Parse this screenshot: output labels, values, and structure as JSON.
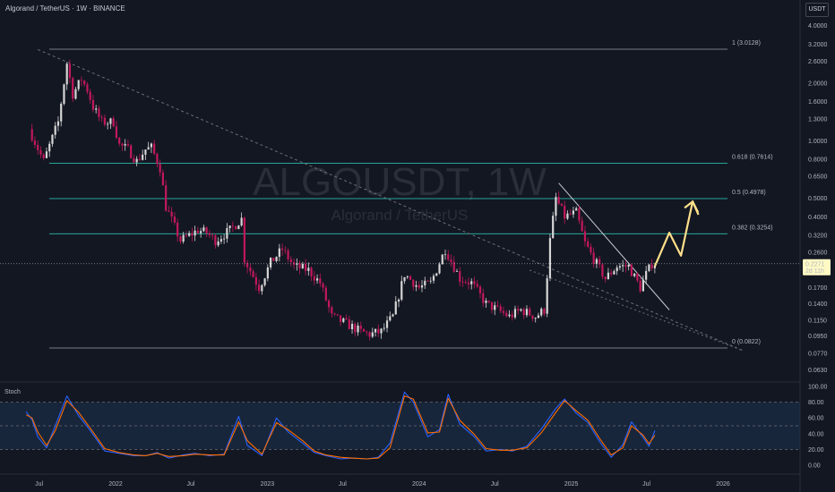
{
  "header": {
    "title": "Algorand / TetherUS · 1W · BINANCE",
    "currency_button": "USDT"
  },
  "watermark": {
    "symbol": "ALGOUSDT, 1W",
    "name": "Algorand / TetherUS"
  },
  "colors": {
    "background": "#131722",
    "up": "#d6d6d6",
    "down": "#c2185b",
    "fib_top": "#787b86",
    "fib_mid": "#26a69a",
    "fib_bottom": "#787b86",
    "arrow": "#ffe08a",
    "stoch_k": "#2962ff",
    "stoch_d": "#ff6d00"
  },
  "chart_data": [
    {
      "type": "candlestick",
      "scale": "log",
      "ylim": [
        0.055,
        4.3
      ],
      "x_ticks": [
        "Jul",
        "2022",
        "Jul",
        "2023",
        "Jul",
        "2024",
        "Jul",
        "2025",
        "Jul",
        "2026"
      ],
      "y_ticks": [
        4.0,
        3.2,
        2.6,
        2.0,
        1.6,
        1.3,
        1.0,
        0.8,
        0.65,
        0.5,
        0.4,
        0.32,
        0.26,
        0.21,
        0.17,
        0.14,
        0.115,
        0.095,
        0.077,
        0.063
      ],
      "y_tick_labels": [
        "4.0000",
        "3.2000",
        "2.6000",
        "2.0000",
        "1.6000",
        "1.3000",
        "1.0000",
        "0.8000",
        "0.6500",
        "0.5000",
        "0.4000",
        "0.3200",
        "0.2600",
        "0.2100",
        "0.1700",
        "0.1400",
        "0.1150",
        "0.0950",
        "0.0770",
        "0.0630"
      ],
      "current_price": {
        "value": 0.2271,
        "label": "0.2271",
        "countdown": "2d 11h"
      },
      "fib_levels": [
        {
          "ratio": 1,
          "price": 3.0128,
          "label": "1 (3.0128)"
        },
        {
          "ratio": 0.618,
          "price": 0.7614,
          "label": "0.618 (0.7614)"
        },
        {
          "ratio": 0.5,
          "price": 0.4978,
          "label": "0.5 (0.4978)"
        },
        {
          "ratio": 0.382,
          "price": 0.3254,
          "label": "0.382 (0.3254)"
        },
        {
          "ratio": 0,
          "price": 0.0822,
          "label": "0 (0.0822)"
        }
      ],
      "price_anchors": [
        [
          "2021-06-14",
          1.15
        ],
        [
          "2021-07-19",
          0.78
        ],
        [
          "2021-08-23",
          1.25
        ],
        [
          "2021-09-13",
          2.55
        ],
        [
          "2021-09-27",
          1.75
        ],
        [
          "2021-10-18",
          2.1
        ],
        [
          "2021-11-01",
          1.85
        ],
        [
          "2021-11-15",
          1.5
        ],
        [
          "2021-12-06",
          1.25
        ],
        [
          "2022-01-03",
          1.25
        ],
        [
          "2022-01-17",
          0.95
        ],
        [
          "2022-02-07",
          0.9
        ],
        [
          "2022-02-28",
          0.78
        ],
        [
          "2022-03-21",
          0.9
        ],
        [
          "2022-04-04",
          0.92
        ],
        [
          "2022-04-25",
          0.72
        ],
        [
          "2022-05-09",
          0.45
        ],
        [
          "2022-06-13",
          0.3
        ],
        [
          "2022-07-25",
          0.34
        ],
        [
          "2022-08-15",
          0.33
        ],
        [
          "2022-09-05",
          0.3
        ],
        [
          "2022-10-10",
          0.34
        ],
        [
          "2022-11-07",
          0.39
        ],
        [
          "2022-11-14",
          0.24
        ],
        [
          "2022-12-19",
          0.17
        ],
        [
          "2023-01-16",
          0.23
        ],
        [
          "2023-02-13",
          0.27
        ],
        [
          "2023-03-13",
          0.22
        ],
        [
          "2023-04-17",
          0.21
        ],
        [
          "2023-05-15",
          0.18
        ],
        [
          "2023-06-12",
          0.12
        ],
        [
          "2023-07-17",
          0.11
        ],
        [
          "2023-08-21",
          0.1
        ],
        [
          "2023-09-11",
          0.097
        ],
        [
          "2023-10-09",
          0.1
        ],
        [
          "2023-11-06",
          0.12
        ],
        [
          "2023-12-04",
          0.2
        ],
        [
          "2024-01-08",
          0.17
        ],
        [
          "2024-02-05",
          0.18
        ],
        [
          "2024-03-11",
          0.27
        ],
        [
          "2024-04-15",
          0.19
        ],
        [
          "2024-05-13",
          0.18
        ],
        [
          "2024-06-17",
          0.14
        ],
        [
          "2024-07-15",
          0.13
        ],
        [
          "2024-08-12",
          0.12
        ],
        [
          "2024-09-09",
          0.13
        ],
        [
          "2024-10-14",
          0.12
        ],
        [
          "2024-11-04",
          0.13
        ],
        [
          "2024-11-18",
          0.3
        ],
        [
          "2024-12-02",
          0.5
        ],
        [
          "2024-12-23",
          0.4
        ],
        [
          "2025-01-20",
          0.42
        ],
        [
          "2025-02-10",
          0.29
        ],
        [
          "2025-03-03",
          0.24
        ],
        [
          "2025-03-31",
          0.19
        ],
        [
          "2025-04-28",
          0.22
        ],
        [
          "2025-05-26",
          0.22
        ],
        [
          "2025-06-23",
          0.17
        ],
        [
          "2025-07-07",
          0.2
        ],
        [
          "2025-07-21",
          0.2271
        ]
      ],
      "trend_lines": [
        {
          "name": "long-term downtrend",
          "from": [
            "2021-06-28",
            3.0
          ],
          "to": [
            "2026-02-16",
            0.08
          ]
        },
        {
          "name": "wedge upper",
          "from": [
            "2024-12-02",
            0.6
          ],
          "to": [
            "2025-08-25",
            0.13
          ]
        },
        {
          "name": "wedge lower",
          "from": [
            "2024-09-23",
            0.21
          ],
          "to": [
            "2026-02-16",
            0.08
          ]
        }
      ],
      "projection_path": [
        [
          "2025-07-21",
          0.22
        ],
        [
          "2025-08-25",
          0.33
        ],
        [
          "2025-09-22",
          0.25
        ],
        [
          "2025-10-20",
          0.48
        ],
        [
          "2025-11-03",
          0.41
        ]
      ]
    },
    {
      "type": "line",
      "title": "Stoch",
      "ylim": [
        0,
        100
      ],
      "y_ticks": [
        100,
        80,
        60,
        40,
        20,
        0
      ],
      "y_tick_labels": [
        "100.00",
        "80.00",
        "60.00",
        "40.00",
        "20.00",
        "0.00"
      ],
      "band": [
        20,
        80
      ],
      "series": [
        {
          "name": "K",
          "values": [
            [
              "2021-05-31",
              68
            ],
            [
              "2021-06-14",
              58
            ],
            [
              "2021-06-28",
              36
            ],
            [
              "2021-07-19",
              22
            ],
            [
              "2021-08-09",
              50
            ],
            [
              "2021-09-06",
              88
            ],
            [
              "2021-10-04",
              63
            ],
            [
              "2021-11-01",
              44
            ],
            [
              "2021-12-06",
              18
            ],
            [
              "2022-01-10",
              15
            ],
            [
              "2022-02-14",
              12
            ],
            [
              "2022-03-14",
              12
            ],
            [
              "2022-04-11",
              16
            ],
            [
              "2022-05-09",
              9
            ],
            [
              "2022-06-13",
              13
            ],
            [
              "2022-07-11",
              15
            ],
            [
              "2022-08-15",
              12
            ],
            [
              "2022-09-19",
              14
            ],
            [
              "2022-10-24",
              62
            ],
            [
              "2022-11-14",
              25
            ],
            [
              "2022-12-19",
              12
            ],
            [
              "2023-01-23",
              60
            ],
            [
              "2023-02-20",
              42
            ],
            [
              "2023-03-27",
              28
            ],
            [
              "2023-04-24",
              16
            ],
            [
              "2023-05-22",
              12
            ],
            [
              "2023-06-26",
              8
            ],
            [
              "2023-07-24",
              9
            ],
            [
              "2023-08-28",
              8
            ],
            [
              "2023-09-25",
              10
            ],
            [
              "2023-10-23",
              28
            ],
            [
              "2023-11-27",
              93
            ],
            [
              "2023-12-18",
              80
            ],
            [
              "2024-01-22",
              36
            ],
            [
              "2024-02-19",
              45
            ],
            [
              "2024-03-11",
              90
            ],
            [
              "2024-04-08",
              52
            ],
            [
              "2024-05-13",
              36
            ],
            [
              "2024-06-10",
              18
            ],
            [
              "2024-07-15",
              20
            ],
            [
              "2024-08-12",
              18
            ],
            [
              "2024-09-16",
              24
            ],
            [
              "2024-10-21",
              46
            ],
            [
              "2024-11-25",
              72
            ],
            [
              "2024-12-16",
              84
            ],
            [
              "2025-01-13",
              66
            ],
            [
              "2025-02-10",
              54
            ],
            [
              "2025-03-10",
              30
            ],
            [
              "2025-04-07",
              10
            ],
            [
              "2025-05-05",
              26
            ],
            [
              "2025-05-26",
              55
            ],
            [
              "2025-06-23",
              35
            ],
            [
              "2025-07-07",
              24
            ],
            [
              "2025-07-21",
              44
            ]
          ]
        },
        {
          "name": "D",
          "values": [
            [
              "2021-05-31",
              64
            ],
            [
              "2021-06-14",
              60
            ],
            [
              "2021-06-28",
              42
            ],
            [
              "2021-07-19",
              25
            ],
            [
              "2021-08-09",
              44
            ],
            [
              "2021-09-06",
              82
            ],
            [
              "2021-10-04",
              67
            ],
            [
              "2021-11-01",
              47
            ],
            [
              "2021-12-06",
              21
            ],
            [
              "2022-01-10",
              16
            ],
            [
              "2022-02-14",
              13
            ],
            [
              "2022-03-14",
              12
            ],
            [
              "2022-04-11",
              15
            ],
            [
              "2022-05-09",
              11
            ],
            [
              "2022-06-13",
              12
            ],
            [
              "2022-07-11",
              14
            ],
            [
              "2022-08-15",
              13
            ],
            [
              "2022-09-19",
              13
            ],
            [
              "2022-10-24",
              55
            ],
            [
              "2022-11-14",
              31
            ],
            [
              "2022-12-19",
              14
            ],
            [
              "2023-01-23",
              54
            ],
            [
              "2023-02-20",
              45
            ],
            [
              "2023-03-27",
              31
            ],
            [
              "2023-04-24",
              18
            ],
            [
              "2023-05-22",
              13
            ],
            [
              "2023-06-26",
              10
            ],
            [
              "2023-07-24",
              9
            ],
            [
              "2023-08-28",
              8
            ],
            [
              "2023-09-25",
              9
            ],
            [
              "2023-10-23",
              22
            ],
            [
              "2023-11-27",
              88
            ],
            [
              "2023-12-18",
              84
            ],
            [
              "2024-01-22",
              41
            ],
            [
              "2024-02-19",
              42
            ],
            [
              "2024-03-11",
              85
            ],
            [
              "2024-04-08",
              57
            ],
            [
              "2024-05-13",
              39
            ],
            [
              "2024-06-10",
              21
            ],
            [
              "2024-07-15",
              19
            ],
            [
              "2024-08-12",
              19
            ],
            [
              "2024-09-16",
              22
            ],
            [
              "2024-10-21",
              41
            ],
            [
              "2024-11-25",
              67
            ],
            [
              "2024-12-16",
              82
            ],
            [
              "2025-01-13",
              69
            ],
            [
              "2025-02-10",
              57
            ],
            [
              "2025-03-10",
              34
            ],
            [
              "2025-04-07",
              13
            ],
            [
              "2025-05-05",
              22
            ],
            [
              "2025-05-26",
              50
            ],
            [
              "2025-06-23",
              38
            ],
            [
              "2025-07-07",
              27
            ],
            [
              "2025-07-21",
              38
            ]
          ]
        }
      ]
    }
  ]
}
